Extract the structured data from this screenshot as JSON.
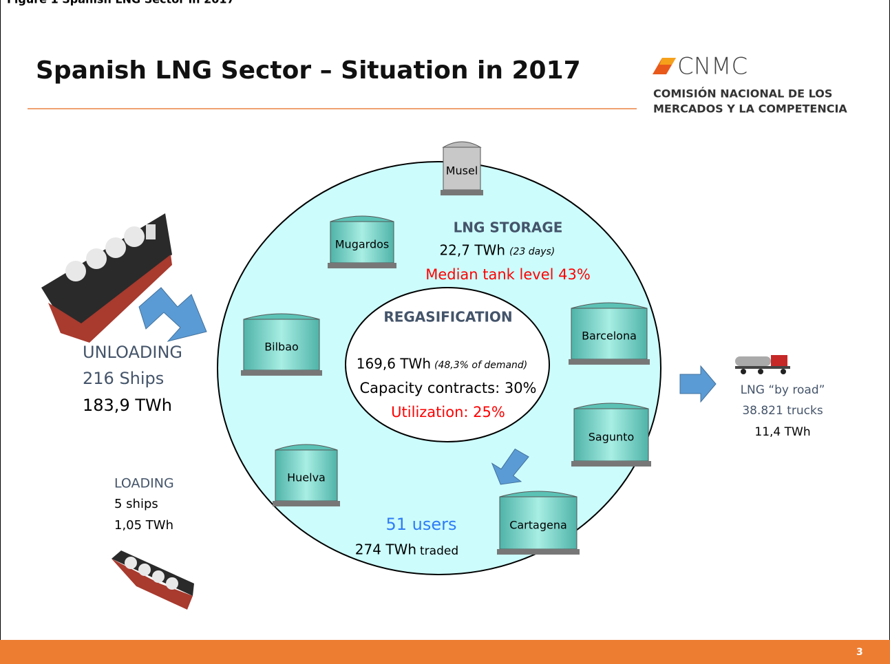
{
  "caption": "Figure 1 Spanish LNG Sector in 2017",
  "header": {
    "title": "Spanish LNG Sector – Situation in 2017",
    "logo": {
      "mark": "CNMC",
      "line1": "COMISIÓN NACIONAL DE LOS",
      "line2": "MERCADOS Y LA COMPETENCIA"
    }
  },
  "storage": {
    "heading": "LNG STORAGE",
    "energy": "22,7 TWh",
    "days": "(23 days)",
    "tank_level": "Median tank level 43%"
  },
  "regasification": {
    "heading": "REGASIFICATION",
    "energy": "169,6 TWh",
    "share": "(48,3% of demand)",
    "contracts": "Capacity contracts: 30%",
    "utilization": "Utilization: 25%"
  },
  "market": {
    "users": "51 users",
    "traded": "274 TWh",
    "traded_unit": "traded"
  },
  "terminals": [
    "Musel",
    "Mugardos",
    "Bilbao",
    "Huelva",
    "Barcelona",
    "Sagunto",
    "Cartagena"
  ],
  "unloading": {
    "heading": "UNLOADING",
    "ships": "216 Ships",
    "energy": "183,9 TWh"
  },
  "loading": {
    "heading": "LOADING",
    "ships": "5 ships",
    "energy": "1,05 TWh"
  },
  "road": {
    "heading": "LNG “by road”",
    "trucks": "38.821 trucks",
    "energy": "11,4 TWh"
  },
  "footer": {
    "page": "3"
  }
}
